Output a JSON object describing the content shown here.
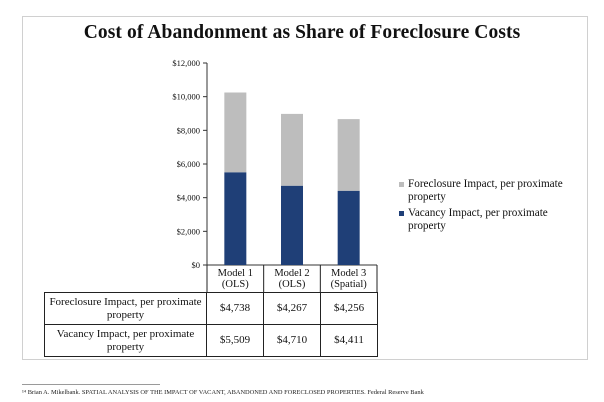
{
  "chart_data": {
    "type": "bar",
    "stacked": true,
    "title": "Cost of Abandonment as Share of Foreclosure Costs",
    "categories": [
      "Model 1 (OLS)",
      "Model 2 (OLS)",
      "Model 3 (Spatial)"
    ],
    "category_lines": [
      [
        "Model 1",
        "(OLS)"
      ],
      [
        "Model 2",
        "(OLS)"
      ],
      [
        "Model 3",
        "(Spatial)"
      ]
    ],
    "series": [
      {
        "name": "Vacancy Impact, per proximate property",
        "values": [
          5509,
          4710,
          4411
        ],
        "labels": [
          "$5,509",
          "$4,710",
          "$4,411"
        ],
        "color": "#1f3f77"
      },
      {
        "name": "Foreclosure Impact, per proximate property",
        "values": [
          4738,
          4267,
          4256
        ],
        "labels": [
          "$4,738",
          "$4,267",
          "$4,256"
        ],
        "color": "#bdbdbd"
      }
    ],
    "yticks": [
      "$0",
      "$2,000",
      "$4,000",
      "$6,000",
      "$8,000",
      "$10,000",
      "$12,000"
    ],
    "ylim": [
      0,
      12000
    ],
    "legend_position": "right",
    "data_table": true
  },
  "footnote": "¹⁴ Brian A. Mikelbank. SPATIAL ANALYSIS OF THE IMPACT OF VACANT, ABANDONED AND FORECLOSED PROPERTIES. Federal Reserve Bank"
}
